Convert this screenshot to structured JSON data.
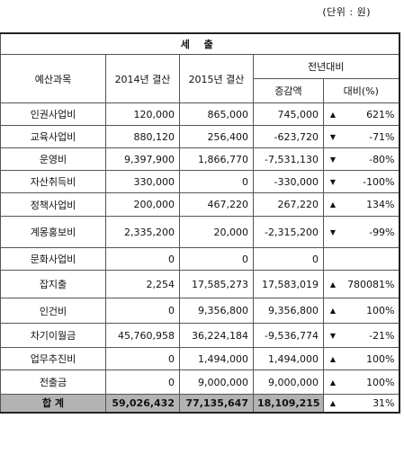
{
  "unit_label": "(단위 : 원)",
  "header": {
    "title": "세 출",
    "col_category": "예산과목",
    "col_2014": "2014년 결산",
    "col_2015": "2015년 결산",
    "col_compare": "전년대비",
    "col_change": "증감액",
    "col_ratio": "대비(%)"
  },
  "rows": [
    {
      "category": "인권사업비",
      "y2014": "120,000",
      "y2015": "865,000",
      "change": "745,000",
      "trend": "▲",
      "ratio": "621%"
    },
    {
      "category": "교육사업비",
      "y2014": "880,120",
      "y2015": "256,400",
      "change": "-623,720",
      "trend": "▼",
      "ratio": "-71%"
    },
    {
      "category": "운영비",
      "y2014": "9,397,900",
      "y2015": "1,866,770",
      "change": "-7,531,130",
      "trend": "▼",
      "ratio": "-80%"
    },
    {
      "category": "자산취득비",
      "y2014": "330,000",
      "y2015": "0",
      "change": "-330,000",
      "trend": "▼",
      "ratio": "-100%"
    },
    {
      "category": "정책사업비",
      "y2014": "200,000",
      "y2015": "467,220",
      "change": "267,220",
      "trend": "▲",
      "ratio": "134%"
    },
    {
      "category": "계몽홍보비",
      "y2014": "2,335,200",
      "y2015": "20,000",
      "change": "-2,315,200",
      "trend": "▼",
      "ratio": "-99%"
    },
    {
      "category": "문화사업비",
      "y2014": "0",
      "y2015": "0",
      "change": "0",
      "trend": "",
      "ratio": ""
    },
    {
      "category": "잡지출",
      "y2014": "2,254",
      "y2015": "17,585,273",
      "change": "17,583,019",
      "trend": "▲",
      "ratio": "780081%"
    },
    {
      "category": "인건비",
      "y2014": "0",
      "y2015": "9,356,800",
      "change": "9,356,800",
      "trend": "▲",
      "ratio": "100%"
    },
    {
      "category": "차기이월금",
      "y2014": "45,760,958",
      "y2015": "36,224,184",
      "change": "-9,536,774",
      "trend": "▼",
      "ratio": "-21%"
    },
    {
      "category": "업무추진비",
      "y2014": "0",
      "y2015": "1,494,000",
      "change": "1,494,000",
      "trend": "▲",
      "ratio": "100%"
    },
    {
      "category": "전출금",
      "y2014": "0",
      "y2015": "9,000,000",
      "change": "9,000,000",
      "trend": "▲",
      "ratio": "100%"
    }
  ],
  "total": {
    "category": "합 계",
    "y2014": "59,026,432",
    "y2015": "77,135,647",
    "change": "18,109,215",
    "trend": "▲",
    "ratio": "31%"
  }
}
